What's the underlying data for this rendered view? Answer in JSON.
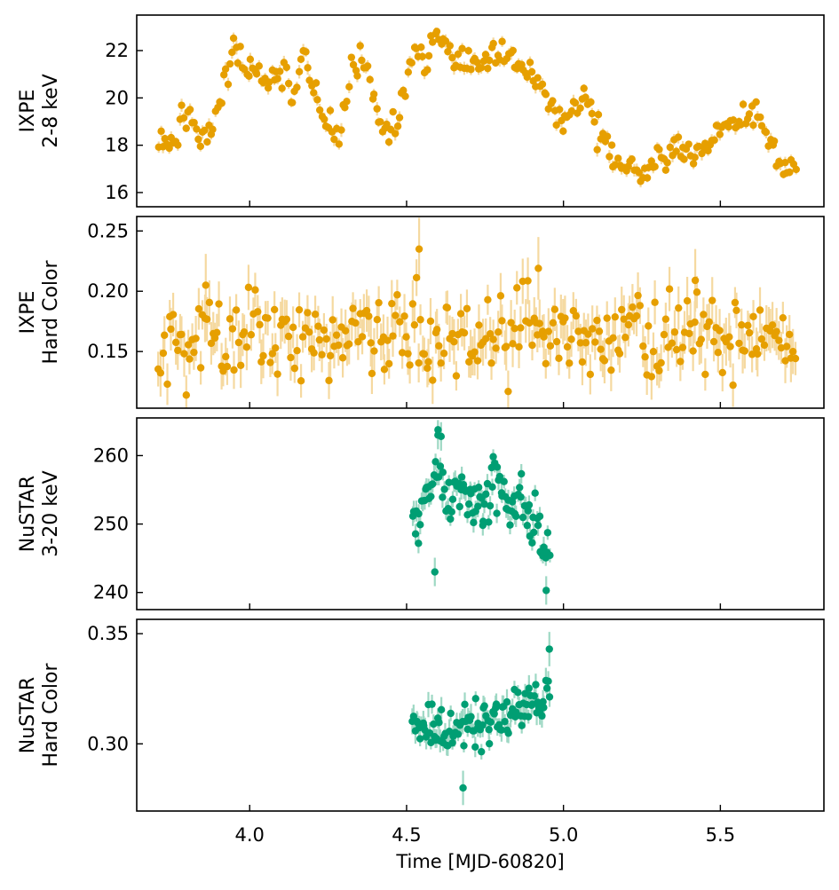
{
  "chart_data": {
    "type": "scatter",
    "xlabel": "Time [MJD-60820]",
    "xlim": [
      3.64,
      5.83
    ],
    "xticks": [
      4.0,
      4.5,
      5.0,
      5.5
    ],
    "xtick_labels": [
      "4.0",
      "4.5",
      "5.0",
      "5.5"
    ],
    "panels": [
      {
        "id": "ixpe-rate",
        "ylabel": [
          "IXPE",
          "2-8 keV"
        ],
        "color": "#E69F00",
        "error_color": "#F5D9A0",
        "ylim": [
          15.4,
          23.5
        ],
        "yticks": [
          16,
          18,
          20,
          22
        ],
        "ytick_labels": [
          "16",
          "18",
          "20",
          "22"
        ],
        "series_kind": "ixpe_rate",
        "x_range": [
          3.71,
          5.74
        ],
        "anchors": [
          [
            3.71,
            18.2
          ],
          [
            3.74,
            18.5
          ],
          [
            3.76,
            18.0
          ],
          [
            3.79,
            19.2
          ],
          [
            3.82,
            19.0
          ],
          [
            3.84,
            18.0
          ],
          [
            3.87,
            18.6
          ],
          [
            3.9,
            19.2
          ],
          [
            3.93,
            21.5
          ],
          [
            3.96,
            22.0
          ],
          [
            3.99,
            21.5
          ],
          [
            4.02,
            21.0
          ],
          [
            4.05,
            20.5
          ],
          [
            4.08,
            20.8
          ],
          [
            4.11,
            21.2
          ],
          [
            4.14,
            20.0
          ],
          [
            4.17,
            21.8
          ],
          [
            4.2,
            20.6
          ],
          [
            4.23,
            19.3
          ],
          [
            4.26,
            18.9
          ],
          [
            4.29,
            18.7
          ],
          [
            4.32,
            20.5
          ],
          [
            4.35,
            22.0
          ],
          [
            4.38,
            21.0
          ],
          [
            4.41,
            19.2
          ],
          [
            4.44,
            18.5
          ],
          [
            4.47,
            18.7
          ],
          [
            4.5,
            21.0
          ],
          [
            4.53,
            22.2
          ],
          [
            4.56,
            21.4
          ],
          [
            4.59,
            22.6
          ],
          [
            4.62,
            22.1
          ],
          [
            4.65,
            21.8
          ],
          [
            4.68,
            21.4
          ],
          [
            4.71,
            22.0
          ],
          [
            4.74,
            21.5
          ],
          [
            4.77,
            22.0
          ],
          [
            4.8,
            21.9
          ],
          [
            4.83,
            21.5
          ],
          [
            4.86,
            21.3
          ],
          [
            4.89,
            21.0
          ],
          [
            4.92,
            20.4
          ],
          [
            4.95,
            20.2
          ],
          [
            4.98,
            19.0
          ],
          [
            5.01,
            19.6
          ],
          [
            5.04,
            19.2
          ],
          [
            5.07,
            20.3
          ],
          [
            5.1,
            18.8
          ],
          [
            5.13,
            18.2
          ],
          [
            5.16,
            17.5
          ],
          [
            5.19,
            16.9
          ],
          [
            5.22,
            17.4
          ],
          [
            5.25,
            16.7
          ],
          [
            5.28,
            17.1
          ],
          [
            5.31,
            17.6
          ],
          [
            5.34,
            17.6
          ],
          [
            5.37,
            18.0
          ],
          [
            5.4,
            17.5
          ],
          [
            5.43,
            17.9
          ],
          [
            5.46,
            17.8
          ],
          [
            5.49,
            18.5
          ],
          [
            5.52,
            18.7
          ],
          [
            5.55,
            19.0
          ],
          [
            5.58,
            19.5
          ],
          [
            5.61,
            19.2
          ],
          [
            5.64,
            18.4
          ],
          [
            5.67,
            17.8
          ],
          [
            5.7,
            17.0
          ],
          [
            5.74,
            16.9
          ]
        ],
        "scatter_sd": 0.32,
        "points_per_unit": 150,
        "err_sd": [
          0.15,
          0.3
        ],
        "seed": 11
      },
      {
        "id": "ixpe-hard-color",
        "ylabel": [
          "IXPE",
          "Hard Color"
        ],
        "color": "#E69F00",
        "error_color": "#F5D9A0",
        "ylim": [
          0.103,
          0.262
        ],
        "yticks": [
          0.15,
          0.2,
          0.25
        ],
        "ytick_labels": [
          "0.15",
          "0.20",
          "0.25"
        ],
        "series_kind": "ixpe_color",
        "x_range": [
          3.71,
          5.74
        ],
        "mean": 0.162,
        "scatter_sd": 0.017,
        "points_per_unit": 150,
        "err_sd": [
          0.012,
          0.02
        ],
        "outliers": [
          [
            4.54,
            0.235
          ],
          [
            4.92,
            0.219
          ],
          [
            5.42,
            0.209
          ],
          [
            3.86,
            0.205
          ]
        ],
        "seed": 23
      },
      {
        "id": "nustar-rate",
        "ylabel": [
          "NuSTAR",
          "3-20 keV"
        ],
        "color": "#009E73",
        "error_color": "#9ED8C4",
        "ylim": [
          237.5,
          265.5
        ],
        "yticks": [
          240,
          250,
          260
        ],
        "ytick_labels": [
          "240",
          "250",
          "260"
        ],
        "series_kind": "nustar_rate",
        "x_range": [
          4.52,
          4.955
        ],
        "anchors": [
          [
            4.52,
            251.0
          ],
          [
            4.54,
            250.0
          ],
          [
            4.56,
            253.0
          ],
          [
            4.58,
            256.0
          ],
          [
            4.6,
            258.0
          ],
          [
            4.62,
            254.0
          ],
          [
            4.64,
            253.0
          ],
          [
            4.66,
            256.0
          ],
          [
            4.68,
            255.0
          ],
          [
            4.7,
            254.0
          ],
          [
            4.72,
            252.0
          ],
          [
            4.74,
            252.5
          ],
          [
            4.76,
            254.0
          ],
          [
            4.78,
            256.0
          ],
          [
            4.8,
            256.0
          ],
          [
            4.82,
            251.0
          ],
          [
            4.84,
            254.0
          ],
          [
            4.86,
            254.0
          ],
          [
            4.88,
            253.0
          ],
          [
            4.9,
            249.0
          ],
          [
            4.92,
            250.0
          ],
          [
            4.935,
            245.0
          ],
          [
            4.955,
            244.0
          ]
        ],
        "scatter_sd": 2.1,
        "points_per_unit": 250,
        "err_sd": [
          1.0,
          1.6
        ],
        "outliers": [
          [
            4.59,
            243.0
          ],
          [
            4.6,
            263.0
          ],
          [
            4.61,
            262.8
          ],
          [
            4.945,
            240.3
          ]
        ],
        "seed": 37
      },
      {
        "id": "nustar-hard-color",
        "ylabel": [
          "NuSTAR",
          "Hard Color"
        ],
        "color": "#009E73",
        "error_color": "#9ED8C4",
        "ylim": [
          0.2695,
          0.3565
        ],
        "yticks": [
          0.3,
          0.35
        ],
        "ytick_labels": [
          "0.30",
          "0.35"
        ],
        "series_kind": "nustar_color",
        "x_range": [
          4.52,
          4.955
        ],
        "anchors": [
          [
            4.52,
            0.307
          ],
          [
            4.6,
            0.306
          ],
          [
            4.7,
            0.307
          ],
          [
            4.8,
            0.31
          ],
          [
            4.87,
            0.316
          ],
          [
            4.955,
            0.324
          ]
        ],
        "scatter_sd": 0.0055,
        "points_per_unit": 250,
        "err_sd": [
          0.003,
          0.006
        ],
        "outliers": [
          [
            4.955,
            0.343
          ],
          [
            4.68,
            0.28
          ]
        ],
        "seed": 53
      }
    ]
  }
}
